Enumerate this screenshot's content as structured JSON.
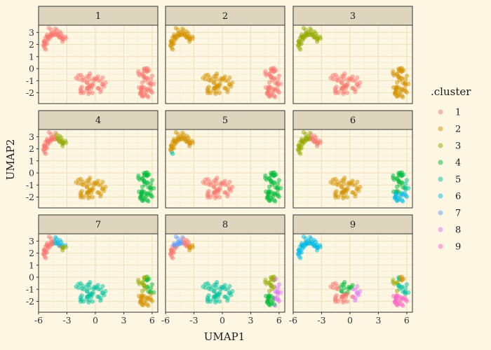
{
  "chart_data": {
    "type": "scatter",
    "layout": "facet-grid 3x3",
    "facets": [
      "1",
      "2",
      "3",
      "4",
      "5",
      "6",
      "7",
      "8",
      "9"
    ],
    "xlabel": "UMAP1",
    "ylabel": "UMAP2",
    "xlim": [
      -6,
      6.6
    ],
    "ylim": [
      -2.9,
      3.6
    ],
    "x_ticks": [
      -6,
      -3,
      0,
      3,
      6
    ],
    "x_tick_labels": [
      "-6",
      "-3",
      "0",
      "3",
      "6"
    ],
    "y_ticks": [
      -2,
      -1,
      0,
      1,
      2,
      3
    ],
    "y_tick_labels": [
      "-2",
      "-1",
      "0",
      "1",
      "2",
      "3"
    ],
    "grid": true,
    "legend": {
      "title": ".cluster",
      "placement": "right",
      "entries": [
        "1",
        "2",
        "3",
        "4",
        "5",
        "6",
        "7",
        "8",
        "9"
      ]
    },
    "colors": {
      "1": "#F8766D",
      "2": "#D39200",
      "3": "#93AA00",
      "4": "#00BA38",
      "5": "#00C19F",
      "6": "#00B9E3",
      "7": "#619CFF",
      "8": "#DB72FB",
      "9": "#FF61C3"
    },
    "point_alpha": 0.5,
    "groups": {
      "A": {
        "center": [
          -4.3,
          2.1
        ],
        "description": "upper-left arc"
      },
      "B": {
        "center": [
          -0.6,
          -1.2
        ],
        "description": "middle-bottom group"
      },
      "C": {
        "center": [
          5.4,
          -1.2
        ],
        "description": "right group"
      }
    }
  },
  "panel_fill": "#fdf6e3",
  "grid_major": "#eee3bf",
  "grid_minor": "#f5ecd2",
  "strip_fill": "#ddd5bd",
  "border": "#333333"
}
